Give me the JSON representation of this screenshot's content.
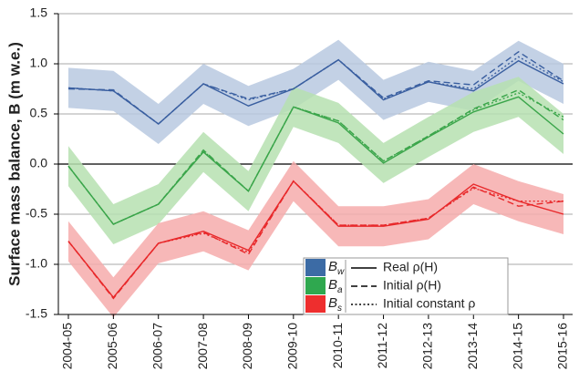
{
  "chart_data": {
    "type": "line",
    "y_label": "Surface mass balance, B (m w.e.)",
    "categories": [
      "2004-05",
      "2005-06",
      "2006-07",
      "2007-08",
      "2008-09",
      "2009-10",
      "2010-11",
      "2011-12",
      "2012-13",
      "2013-14",
      "2014-15",
      "2015-16"
    ],
    "ylim": [
      -1.5,
      1.5
    ],
    "yticks": [
      -1.5,
      {
        "value": -1,
        "label": "-1.0"
      },
      -0.5,
      {
        "value": 0,
        "label": "0.0"
      },
      0.5,
      {
        "value": 1,
        "label": "1.0"
      },
      1.5
    ],
    "grid": true,
    "line_styles": [
      {
        "name": "Real ρ(H)",
        "dash": "solid"
      },
      {
        "name": "Initial ρ(H)",
        "dash": "dashed"
      },
      {
        "name": "Initial constant ρ",
        "dash": "dotted"
      }
    ],
    "groups": [
      {
        "name": "Bw",
        "color": "#3a5fa0",
        "band_color": "#b9c9e1",
        "swatch_color": "#3c6ba5",
        "error": 0.2,
        "lines": [
          {
            "values": [
              0.76,
              0.73,
              0.4,
              0.8,
              0.58,
              0.75,
              1.04,
              0.64,
              0.82,
              0.73,
              1.03,
              0.8
            ]
          },
          {
            "values": [
              0.75,
              0.74,
              0.4,
              0.8,
              0.65,
              0.75,
              1.04,
              0.66,
              0.83,
              0.79,
              1.12,
              0.83
            ]
          },
          {
            "values": [
              0.76,
              0.73,
              0.4,
              0.8,
              0.64,
              0.75,
              1.04,
              0.65,
              0.82,
              0.75,
              1.07,
              0.82
            ]
          }
        ]
      },
      {
        "name": "Ba",
        "color": "#3aa54a",
        "band_color": "#b6e0b0",
        "swatch_color": "#2fa84f",
        "error": 0.2,
        "lines": [
          {
            "values": [
              -0.02,
              -0.6,
              -0.4,
              0.12,
              -0.27,
              0.57,
              0.41,
              0.01,
              0.27,
              0.52,
              0.67,
              0.3
            ]
          },
          {
            "values": [
              -0.02,
              -0.6,
              -0.4,
              0.14,
              -0.27,
              0.57,
              0.43,
              0.03,
              0.28,
              0.55,
              0.74,
              0.44
            ]
          },
          {
            "values": [
              -0.02,
              -0.6,
              -0.4,
              0.13,
              -0.27,
              0.57,
              0.43,
              0.03,
              0.28,
              0.54,
              0.71,
              0.47
            ]
          }
        ]
      },
      {
        "name": "Bs",
        "color": "#e8282a",
        "band_color": "#f6abab",
        "swatch_color": "#ee2e2e",
        "error": 0.2,
        "lines": [
          {
            "values": [
              -0.77,
              -1.33,
              -0.79,
              -0.67,
              -0.86,
              -0.17,
              -0.62,
              -0.62,
              -0.55,
              -0.2,
              -0.37,
              -0.5
            ]
          },
          {
            "values": [
              -0.77,
              -1.34,
              -0.79,
              -0.68,
              -0.9,
              -0.17,
              -0.61,
              -0.61,
              -0.54,
              -0.23,
              -0.42,
              -0.37
            ]
          },
          {
            "values": [
              -0.77,
              -1.33,
              -0.79,
              -0.69,
              -0.88,
              -0.17,
              -0.61,
              -0.61,
              -0.54,
              -0.24,
              -0.37,
              -0.37
            ]
          }
        ]
      }
    ]
  }
}
